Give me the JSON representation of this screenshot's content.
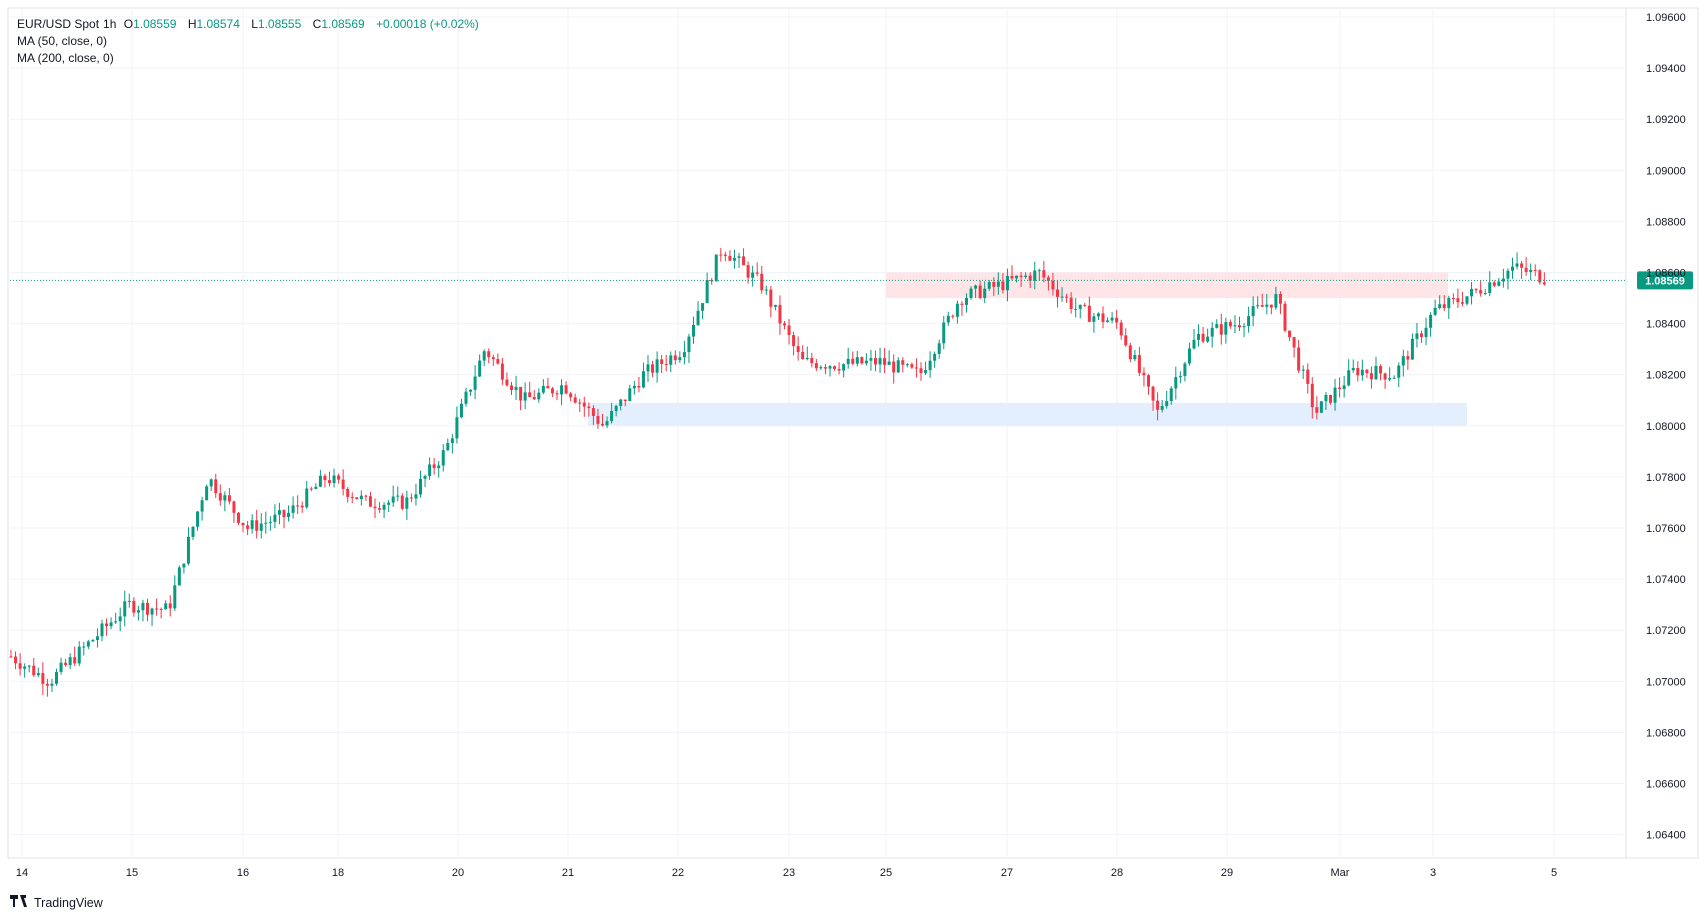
{
  "header": {
    "symbol": "EUR/USD Spot",
    "interval": "1h",
    "open_label": "O",
    "open": "1.08559",
    "high_label": "H",
    "high": "1.08574",
    "low_label": "L",
    "low": "1.08555",
    "close_label": "C",
    "close": "1.08569",
    "change": "+0.00018 (+0.02%)",
    "indicator_1": "MA (50, close, 0)",
    "indicator_2": "MA (200, close, 0)"
  },
  "brand": {
    "name": "TradingView",
    "logo_icon": "tradingview-logo-icon"
  },
  "chart_data": {
    "type": "candlestick",
    "grid": true,
    "y_ticks": [
      "1.09600",
      "1.09400",
      "1.09200",
      "1.09000",
      "1.08800",
      "1.08600",
      "1.08400",
      "1.08200",
      "1.08000",
      "1.07800",
      "1.07600",
      "1.07400",
      "1.07200",
      "1.07000",
      "1.06800",
      "1.06600",
      "1.06400"
    ],
    "y_range": [
      1.0633,
      1.0966
    ],
    "x_ticks": [
      "14",
      "15",
      "16",
      "18",
      "20",
      "21",
      "22",
      "23",
      "25",
      "27",
      "28",
      "29",
      "Mar",
      "3",
      "5"
    ],
    "last_price": 1.08569,
    "last_price_label": "1.08569",
    "zones": [
      {
        "name": "resistance-zone",
        "x_start": "25",
        "x_end": "3",
        "y_low": 1.085,
        "y_high": 1.086,
        "color": "#fde5e8"
      },
      {
        "name": "support-zone",
        "x_start": "21",
        "x_end": "3",
        "y_low": 1.08,
        "y_high": 1.0809,
        "color": "#e3effd"
      }
    ],
    "colors": {
      "up": "#089981",
      "down": "#f23645",
      "grid": "#f0f3fa",
      "last_price_line": "#089981"
    },
    "candles_approx_close_path": [
      [
        "14",
        1.071
      ],
      [
        "14",
        1.07
      ],
      [
        "14",
        1.0715
      ],
      [
        "15",
        1.073
      ],
      [
        "15",
        1.0728
      ],
      [
        "16",
        1.078
      ],
      [
        "16",
        1.076
      ],
      [
        "16",
        1.0765
      ],
      [
        "18",
        1.078
      ],
      [
        "18",
        1.077
      ],
      [
        "20",
        1.077
      ],
      [
        "20",
        1.079
      ],
      [
        "20",
        1.083
      ],
      [
        "21",
        1.081
      ],
      [
        "21",
        1.0816
      ],
      [
        "21",
        1.08
      ],
      [
        "22",
        1.082
      ],
      [
        "22",
        1.083
      ],
      [
        "22",
        1.087
      ],
      [
        "22",
        1.0855
      ],
      [
        "23",
        1.0825
      ],
      [
        "23",
        1.0824
      ],
      [
        "25",
        1.0825
      ],
      [
        "25",
        1.082
      ],
      [
        "25",
        1.085
      ],
      [
        "27",
        1.0855
      ],
      [
        "27",
        1.086
      ],
      [
        "28",
        1.0845
      ],
      [
        "28",
        1.084
      ],
      [
        "28",
        1.0805
      ],
      [
        "29",
        1.0835
      ],
      [
        "29",
        1.084
      ],
      [
        "29",
        1.085
      ],
      [
        "Mar",
        1.0805
      ],
      [
        "Mar",
        1.0822
      ],
      [
        "3",
        1.082
      ],
      [
        "3",
        1.0845
      ],
      [
        "3",
        1.0852
      ],
      [
        "5",
        1.0862
      ],
      [
        "5",
        1.0857
      ]
    ]
  }
}
